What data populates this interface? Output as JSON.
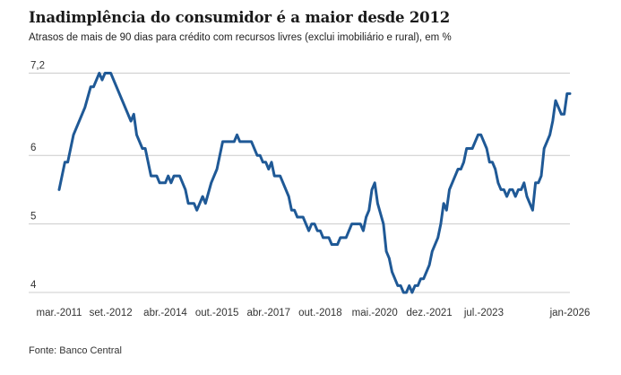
{
  "chart_data": {
    "type": "line",
    "title": "Inadimplência do consumidor é a maior desde 2012",
    "subtitle": "Atrasos de mais de 90 dias para crédito com recursos livres (exclui imobiliário e rural), em %",
    "source": "Fonte: Banco Central",
    "xlabel": "",
    "ylabel": "",
    "ylim": [
      4,
      7.2
    ],
    "grid": true,
    "line_color": "#1f5996",
    "grid_color": "#cccccc",
    "y_ticks": [
      {
        "value": 7.2,
        "label": "7,2"
      },
      {
        "value": 6,
        "label": "6"
      },
      {
        "value": 5,
        "label": "5"
      },
      {
        "value": 4,
        "label": "4"
      }
    ],
    "x_ticks": [
      {
        "date": "2011-03",
        "label": "mar.-2011"
      },
      {
        "date": "2012-09",
        "label": "set.-2012"
      },
      {
        "date": "2014-04",
        "label": "abr.-2014"
      },
      {
        "date": "2015-10",
        "label": "out.-2015"
      },
      {
        "date": "2017-04",
        "label": "abr.-2017"
      },
      {
        "date": "2018-10",
        "label": "out.-2018"
      },
      {
        "date": "2020-05",
        "label": "mai.-2020"
      },
      {
        "date": "2021-12",
        "label": "dez.-2021"
      },
      {
        "date": "2023-07",
        "label": "jul.-2023"
      },
      {
        "date": "2026-01",
        "label": "jan-2026"
      }
    ],
    "xlim": [
      "2011-03",
      "2026-01"
    ],
    "series": [
      {
        "points": [
          [
            "2011-03",
            5.5
          ],
          [
            "2011-05",
            5.9
          ],
          [
            "2011-06",
            5.9
          ],
          [
            "2011-08",
            6.3
          ],
          [
            "2011-12",
            6.7
          ],
          [
            "2012-02",
            7.0
          ],
          [
            "2012-03",
            7.0
          ],
          [
            "2012-05",
            7.2
          ],
          [
            "2012-06",
            7.1
          ],
          [
            "2012-07",
            7.2
          ],
          [
            "2012-09",
            7.2
          ],
          [
            "2013-04",
            6.5
          ],
          [
            "2013-05",
            6.6
          ],
          [
            "2013-06",
            6.3
          ],
          [
            "2013-08",
            6.1
          ],
          [
            "2013-09",
            6.1
          ],
          [
            "2013-11",
            5.7
          ],
          [
            "2014-01",
            5.7
          ],
          [
            "2014-02",
            5.6
          ],
          [
            "2014-04",
            5.6
          ],
          [
            "2014-05",
            5.7
          ],
          [
            "2014-06",
            5.6
          ],
          [
            "2014-07",
            5.7
          ],
          [
            "2014-09",
            5.7
          ],
          [
            "2014-11",
            5.5
          ],
          [
            "2014-12",
            5.3
          ],
          [
            "2015-02",
            5.3
          ],
          [
            "2015-03",
            5.2
          ],
          [
            "2015-05",
            5.4
          ],
          [
            "2015-06",
            5.3
          ],
          [
            "2015-08",
            5.6
          ],
          [
            "2015-10",
            5.8
          ],
          [
            "2015-12",
            6.2
          ],
          [
            "2016-04",
            6.2
          ],
          [
            "2016-05",
            6.3
          ],
          [
            "2016-06",
            6.2
          ],
          [
            "2016-10",
            6.2
          ],
          [
            "2016-12",
            6.0
          ],
          [
            "2017-01",
            6.0
          ],
          [
            "2017-02",
            5.9
          ],
          [
            "2017-03",
            5.9
          ],
          [
            "2017-04",
            5.8
          ],
          [
            "2017-05",
            5.9
          ],
          [
            "2017-06",
            5.7
          ],
          [
            "2017-08",
            5.7
          ],
          [
            "2017-11",
            5.4
          ],
          [
            "2017-12",
            5.2
          ],
          [
            "2018-01",
            5.2
          ],
          [
            "2018-02",
            5.1
          ],
          [
            "2018-04",
            5.1
          ],
          [
            "2018-06",
            4.9
          ],
          [
            "2018-07",
            5.0
          ],
          [
            "2018-08",
            5.0
          ],
          [
            "2018-09",
            4.9
          ],
          [
            "2018-10",
            4.9
          ],
          [
            "2018-11",
            4.8
          ],
          [
            "2019-01",
            4.8
          ],
          [
            "2019-02",
            4.7
          ],
          [
            "2019-04",
            4.7
          ],
          [
            "2019-05",
            4.8
          ],
          [
            "2019-07",
            4.8
          ],
          [
            "2019-09",
            5.0
          ],
          [
            "2019-12",
            5.0
          ],
          [
            "2020-01",
            4.9
          ],
          [
            "2020-02",
            5.1
          ],
          [
            "2020-03",
            5.2
          ],
          [
            "2020-04",
            5.5
          ],
          [
            "2020-05",
            5.6
          ],
          [
            "2020-06",
            5.3
          ],
          [
            "2020-08",
            5.0
          ],
          [
            "2020-09",
            4.6
          ],
          [
            "2020-10",
            4.5
          ],
          [
            "2020-11",
            4.3
          ],
          [
            "2021-01",
            4.1
          ],
          [
            "2021-02",
            4.1
          ],
          [
            "2021-03",
            4.0
          ],
          [
            "2021-04",
            4.0
          ],
          [
            "2021-05",
            4.1
          ],
          [
            "2021-06",
            4.0
          ],
          [
            "2021-07",
            4.1
          ],
          [
            "2021-08",
            4.1
          ],
          [
            "2021-09",
            4.2
          ],
          [
            "2021-10",
            4.2
          ],
          [
            "2021-12",
            4.4
          ],
          [
            "2022-01",
            4.6
          ],
          [
            "2022-03",
            4.8
          ],
          [
            "2022-04",
            5.0
          ],
          [
            "2022-05",
            5.3
          ],
          [
            "2022-06",
            5.2
          ],
          [
            "2022-07",
            5.5
          ],
          [
            "2022-10",
            5.8
          ],
          [
            "2022-11",
            5.8
          ],
          [
            "2022-12",
            5.9
          ],
          [
            "2023-01",
            6.1
          ],
          [
            "2023-03",
            6.1
          ],
          [
            "2023-05",
            6.3
          ],
          [
            "2023-06",
            6.3
          ],
          [
            "2023-08",
            6.1
          ],
          [
            "2023-09",
            5.9
          ],
          [
            "2023-10",
            5.9
          ],
          [
            "2023-11",
            5.8
          ],
          [
            "2023-12",
            5.6
          ],
          [
            "2024-01",
            5.5
          ],
          [
            "2024-02",
            5.5
          ],
          [
            "2024-03",
            5.4
          ],
          [
            "2024-04",
            5.5
          ],
          [
            "2024-05",
            5.5
          ],
          [
            "2024-06",
            5.4
          ],
          [
            "2024-07",
            5.5
          ],
          [
            "2024-08",
            5.5
          ],
          [
            "2024-09",
            5.6
          ],
          [
            "2024-10",
            5.4
          ],
          [
            "2024-12",
            5.2
          ],
          [
            "2025-01",
            5.6
          ],
          [
            "2025-02",
            5.6
          ],
          [
            "2025-03",
            5.7
          ],
          [
            "2025-04",
            6.1
          ],
          [
            "2025-05",
            6.2
          ],
          [
            "2025-06",
            6.3
          ],
          [
            "2025-07",
            6.5
          ],
          [
            "2025-08",
            6.8
          ],
          [
            "2025-10",
            6.6
          ],
          [
            "2025-11",
            6.6
          ],
          [
            "2025-12",
            6.9
          ],
          [
            "2026-01",
            6.9
          ]
        ]
      }
    ]
  }
}
